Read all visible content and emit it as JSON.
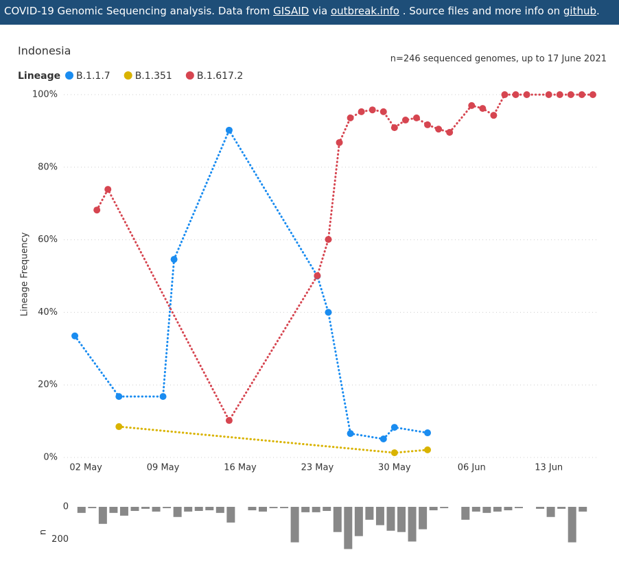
{
  "header": {
    "parts": [
      "COVID-19 Genomic Sequencing analysis. Data from ",
      "GISAID",
      " via ",
      "outbreak.info",
      " . Source files and more info on ",
      "github",
      "."
    ]
  },
  "chart_data": [
    {
      "type": "line",
      "title": "Indonesia",
      "subtitle": "n=246 sequenced genomes, up to 17 June 2021",
      "legend_title": "Lineage",
      "ylabel": "Lineage Frequency",
      "xlim": [
        "30 Apr",
        "18 Jun"
      ],
      "xticks": [
        "02 May",
        "09 May",
        "16 May",
        "23 May",
        "30 May",
        "06 Jun",
        "13 Jun"
      ],
      "ylim": [
        0,
        100
      ],
      "yticks": [
        {
          "value": 0,
          "label": "0%"
        },
        {
          "value": 20,
          "label": "20%"
        },
        {
          "value": 40,
          "label": "40%"
        },
        {
          "value": 60,
          "label": "60%"
        },
        {
          "value": 80,
          "label": "80%"
        },
        {
          "value": 100,
          "label": "100%"
        }
      ],
      "grid": true,
      "series": [
        {
          "name": "B.1.1.7",
          "color": "#1a8cf0",
          "x": [
            "01 May",
            "05 May",
            "09 May",
            "10 May",
            "15 May",
            "23 May",
            "24 May",
            "26 May",
            "29 May",
            "30 May",
            "02 Jun"
          ],
          "values": [
            33.5,
            16.8,
            16.8,
            54.6,
            90.2,
            50,
            40,
            6.6,
            5.1,
            8.3,
            6.8
          ]
        },
        {
          "name": "B.1.351",
          "color": "#d9b300",
          "x": [
            "05 May",
            "30 May",
            "02 Jun"
          ],
          "values": [
            8.5,
            1.3,
            2.1
          ]
        },
        {
          "name": "B.1.617.2",
          "color": "#d64550",
          "x": [
            "03 May",
            "04 May",
            "15 May",
            "23 May",
            "24 May",
            "25 May",
            "26 May",
            "27 May",
            "28 May",
            "29 May",
            "30 May",
            "31 May",
            "01 Jun",
            "02 Jun",
            "03 Jun",
            "04 Jun",
            "06 Jun",
            "07 Jun",
            "08 Jun",
            "09 Jun",
            "10 Jun",
            "11 Jun",
            "13 Jun",
            "14 Jun",
            "15 Jun",
            "16 Jun",
            "17 Jun"
          ],
          "values": [
            68.2,
            73.9,
            10.2,
            50.1,
            60.1,
            86.8,
            93.6,
            95.3,
            95.8,
            95.3,
            90.9,
            93.0,
            93.6,
            91.7,
            90.5,
            89.6,
            97.0,
            96.2,
            94.3,
            100,
            100,
            100,
            100,
            100,
            100,
            100,
            100
          ]
        }
      ]
    },
    {
      "type": "bar",
      "ylabel": "n",
      "color": "#888888",
      "ylim": [
        0,
        260
      ],
      "yticks": [
        0,
        200
      ],
      "values": [
        37,
        8,
        104,
        37,
        54,
        25,
        12,
        29,
        8,
        62,
        29,
        25,
        21,
        37,
        96,
        null,
        21,
        29,
        8,
        8,
        217,
        33,
        33,
        25,
        154,
        258,
        179,
        79,
        112,
        146,
        154,
        212,
        137,
        21,
        8,
        null,
        79,
        29,
        37,
        29,
        21,
        8,
        null,
        12,
        62,
        12,
        217,
        29
      ]
    }
  ]
}
